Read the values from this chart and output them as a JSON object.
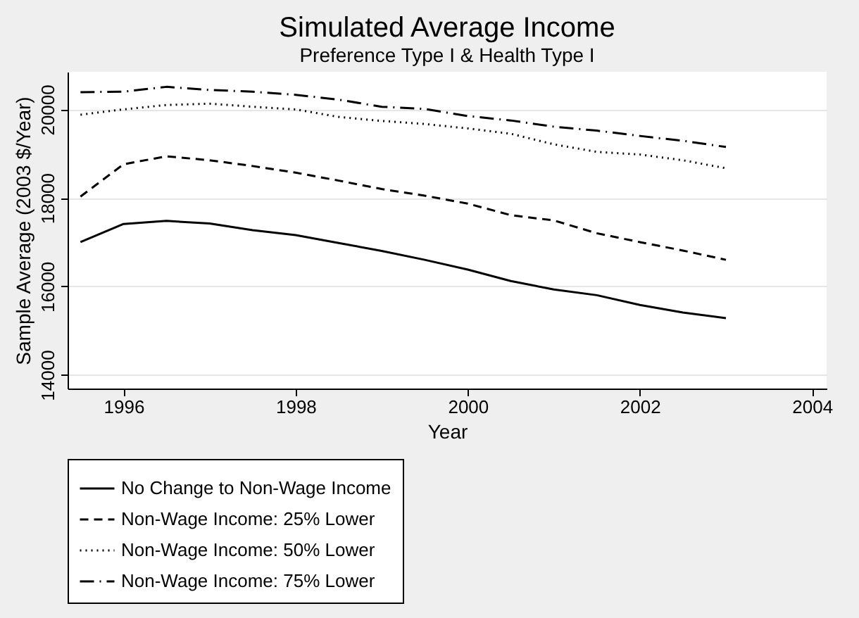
{
  "chart_data": {
    "type": "line",
    "title": "Simulated Average Income",
    "subtitle": "Preference Type I & Health Type I",
    "xlabel": "Year",
    "ylabel": "Sample Average (2003 $/Year)",
    "x": [
      1995.5,
      1996,
      1996.5,
      1997,
      1997.5,
      1998,
      1998.5,
      1999,
      1999.5,
      2000,
      2000.5,
      2001,
      2001.5,
      2002,
      2002.5,
      2003
    ],
    "series": [
      {
        "name": "No Change to Non-Wage Income",
        "color": "#000000",
        "line_style": "solid",
        "values": [
          17000,
          17410,
          17480,
          17420,
          17270,
          17160,
          16980,
          16800,
          16600,
          16380,
          16120,
          15930,
          15800,
          15580,
          15410,
          15280
        ]
      },
      {
        "name": "Non-Wage Income: 25% Lower",
        "color": "#000000",
        "line_style": "dashed",
        "values": [
          18030,
          18760,
          18940,
          18850,
          18720,
          18570,
          18390,
          18200,
          18050,
          17870,
          17610,
          17490,
          17200,
          17000,
          16810,
          16600
        ]
      },
      {
        "name": "Non-Wage Income: 50% Lower",
        "color": "#000000",
        "line_style": "dotted",
        "values": [
          19880,
          20000,
          20100,
          20130,
          20060,
          20000,
          19830,
          19740,
          19670,
          19570,
          19450,
          19210,
          19040,
          18980,
          18850,
          18670
        ]
      },
      {
        "name": "Non-Wage Income: 75% Lower",
        "color": "#000000",
        "line_style": "dashdot",
        "values": [
          20390,
          20400,
          20510,
          20440,
          20400,
          20330,
          20220,
          20060,
          20010,
          19850,
          19750,
          19610,
          19520,
          19400,
          19290,
          19150
        ]
      }
    ],
    "xlim": [
      1995.35,
      2004.17
    ],
    "xticks": [
      1996,
      1998,
      2000,
      2002,
      2004
    ],
    "ylim": [
      13690,
      20850
    ],
    "yticks": [
      14000,
      16000,
      18000,
      20000
    ],
    "grid": "y",
    "legend": "bottom",
    "marker": "none"
  }
}
